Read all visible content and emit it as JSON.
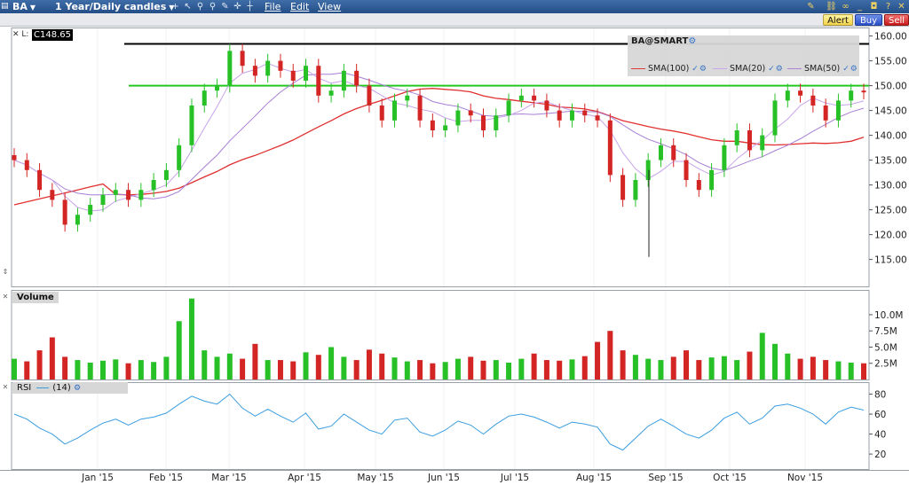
{
  "titlebar": {
    "symbol": "BA",
    "period": "1 Year/Daily candles",
    "menu": [
      "File",
      "Edit",
      "View"
    ]
  },
  "toolbar": {
    "alert": "Alert",
    "buy": "Buy",
    "sell": "Sell"
  },
  "price_readout": {
    "prefix": "L:",
    "value": "C148.65"
  },
  "legend": {
    "title": "BA@SMART",
    "items": [
      {
        "label": "SMA(100)",
        "color": "#e03030"
      },
      {
        "label": "SMA(20)",
        "color": "#c8a0e8"
      },
      {
        "label": "SMA(50)",
        "color": "#b48cdc"
      }
    ]
  },
  "panes": {
    "volume": "Volume",
    "rsi_label": "RSI",
    "rsi_param": "(14)"
  },
  "colors": {
    "up": "#27c127",
    "down": "#d42525",
    "sma100": "#e03030",
    "sma20": "#c7a3ea",
    "sma50": "#a77fd6",
    "rsi": "#3b9de0",
    "hline_green": "#22c81e",
    "hline_black": "#000000"
  },
  "chart_data": [
    {
      "type": "candlestick",
      "title": "BA",
      "x_labels": [
        "Jan '15",
        "Feb '15",
        "Mar '15",
        "Apr '15",
        "May '15",
        "Jun '15",
        "Jul '15",
        "Aug '15",
        "Sep '15",
        "Oct '15",
        "Nov '15"
      ],
      "y_ticks": [
        "160.00",
        "155.00",
        "150.00",
        "145.00",
        "140.00",
        "135.00",
        "130.00",
        "125.00",
        "120.00",
        "115.00"
      ],
      "ylim": [
        111,
        161
      ],
      "weekly_closes": [
        135,
        133,
        129,
        127,
        122,
        124,
        126,
        128,
        129,
        127,
        129,
        131,
        133,
        138,
        146,
        149,
        150,
        157,
        154,
        152,
        155,
        153,
        151,
        154,
        148,
        149,
        153,
        150,
        146,
        143,
        147,
        148,
        143,
        141,
        142,
        145,
        144,
        141,
        144,
        147,
        148,
        147,
        145,
        143,
        145,
        144,
        143,
        132,
        127,
        131,
        135,
        138,
        135,
        131,
        129,
        133,
        138,
        141,
        137,
        140,
        147,
        149,
        148,
        146,
        143,
        147,
        149,
        148.65
      ],
      "horizontal_lines": [
        {
          "value": 158.4,
          "color": "black"
        },
        {
          "value": 150.0,
          "color": "green"
        }
      ],
      "series": [
        {
          "name": "SMA(100)"
        },
        {
          "name": "SMA(20)"
        },
        {
          "name": "SMA(50)"
        }
      ]
    },
    {
      "type": "bar",
      "title": "Volume",
      "y_ticks": [
        "10.0M",
        "7.5M",
        "5.0M",
        "2.5M"
      ],
      "ylim": [
        0,
        13
      ],
      "weekly_volumes_m": [
        3.2,
        2.8,
        4.5,
        6.5,
        3.5,
        3.0,
        2.6,
        2.9,
        3.1,
        2.5,
        3.0,
        2.7,
        3.5,
        9.0,
        12.5,
        4.5,
        3.5,
        4.0,
        3.2,
        5.5,
        3.0,
        3.0,
        2.8,
        4.2,
        3.8,
        5.0,
        3.5,
        3.0,
        4.6,
        4.0,
        3.4,
        2.8,
        3.0,
        2.5,
        2.7,
        3.2,
        3.5,
        2.9,
        3.0,
        2.6,
        3.2,
        4.0,
        3.0,
        2.9,
        3.1,
        3.6,
        5.8,
        7.5,
        4.5,
        3.8,
        3.2,
        3.0,
        3.5,
        4.5,
        3.0,
        3.4,
        3.6,
        3.0,
        4.3,
        7.2,
        5.5,
        4.0,
        3.2,
        3.5,
        3.0,
        2.8,
        2.6,
        2.5
      ]
    },
    {
      "type": "line",
      "title": "RSI",
      "y_ticks": [
        "80",
        "60",
        "40",
        "20"
      ],
      "ylim": [
        5,
        92
      ],
      "series": [
        {
          "name": "RSI(14)",
          "weekly_values": [
            60,
            55,
            46,
            40,
            30,
            36,
            44,
            51,
            55,
            49,
            55,
            57,
            61,
            70,
            78,
            73,
            70,
            80,
            66,
            58,
            65,
            58,
            52,
            61,
            45,
            48,
            60,
            52,
            44,
            40,
            54,
            56,
            42,
            38,
            44,
            53,
            49,
            40,
            50,
            58,
            60,
            57,
            52,
            46,
            52,
            50,
            47,
            30,
            24,
            36,
            48,
            55,
            48,
            40,
            36,
            44,
            56,
            62,
            50,
            56,
            68,
            70,
            66,
            60,
            50,
            62,
            67,
            64
          ]
        }
      ]
    }
  ]
}
